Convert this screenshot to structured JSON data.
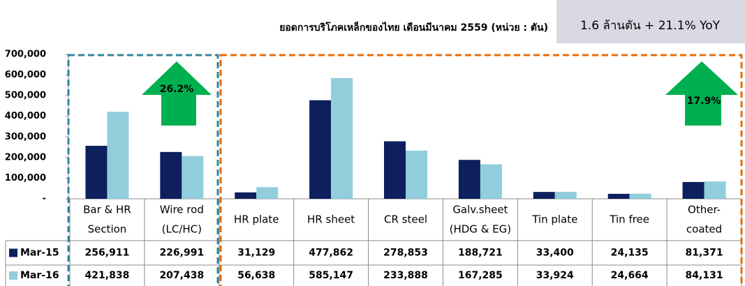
{
  "chart_data": {
    "type": "bar",
    "title": "ยอดการบริโภคเหล็กของไทย เดือนมีนาคม 2559 (หน่วย : ตัน)",
    "subtitle": "1.6 ล้านตัน + 21.1% YoY",
    "annotations": [
      "26.2%",
      "17.9%"
    ],
    "categories": [
      [
        "Bar & HR",
        "Section"
      ],
      [
        "Wire rod",
        "(LC/HC)"
      ],
      [
        "HR plate"
      ],
      [
        "HR sheet"
      ],
      [
        "CR steel"
      ],
      [
        "Galv.sheet",
        "(HDG & EG)"
      ],
      [
        "Tin plate"
      ],
      [
        "Tin free"
      ],
      [
        "Other-",
        "coated"
      ]
    ],
    "series": [
      {
        "name": "Mar-15",
        "color": "#0d1f5c",
        "values": [
          256911,
          226991,
          31129,
          477862,
          278853,
          188721,
          33400,
          24135,
          81371
        ],
        "value_labels": [
          "256,911",
          "226,991",
          "31,129",
          "477,862",
          "278,853",
          "188,721",
          "33,400",
          "24,135",
          "81,371"
        ]
      },
      {
        "name": "Mar-16",
        "color": "#92cddc",
        "values": [
          421838,
          207438,
          56638,
          585147,
          233888,
          167285,
          33924,
          24664,
          84131
        ],
        "value_labels": [
          "421,838",
          "207,438",
          "56,638",
          "585,147",
          "233,888",
          "167,285",
          "33,924",
          "24,664",
          "84,131"
        ]
      }
    ],
    "ylim": [
      0,
      700000
    ],
    "yticks": [
      {
        "value": 0,
        "label": "-"
      },
      {
        "value": 100000,
        "label": "100,000"
      },
      {
        "value": 200000,
        "label": "200,000"
      },
      {
        "value": 300000,
        "label": "300,000"
      },
      {
        "value": 400000,
        "label": "400,000"
      },
      {
        "value": 500000,
        "label": "500,000"
      },
      {
        "value": 600000,
        "label": "600,000"
      },
      {
        "value": 700000,
        "label": "700,000"
      }
    ]
  }
}
